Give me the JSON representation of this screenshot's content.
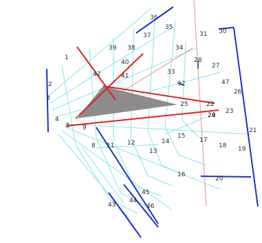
{
  "labels": {
    "l1": "1",
    "l2": "2",
    "l3": "3",
    "l4": "4",
    "l5": "5",
    "l6": "6",
    "l7": "7",
    "l8": "8",
    "l9": "9",
    "l11": "11",
    "l12": "12",
    "l13": "13",
    "l14": "14",
    "l15": "15",
    "l16": "16",
    "l17": "17",
    "l18": "18",
    "l19": "19",
    "l20": "20",
    "l21": "21",
    "l22": "22",
    "l23": "23",
    "l24": "24",
    "l25": "25",
    "l26": "26",
    "l27": "27",
    "l28": "28",
    "l29": "29",
    "l30": "30",
    "l31": "31",
    "l32": "32",
    "l33": "33",
    "l34": "34",
    "l35": "35",
    "l36": "36",
    "l37": "37",
    "l38": "38",
    "l39": "39",
    "l40": "40",
    "l41": "41",
    "l42": "42",
    "l43": "43",
    "l44": "44",
    "l45": "45",
    "l46": "46",
    "l47": "47"
  },
  "colors": {
    "grid": "#7fe6ee",
    "blue_line": "#1a2fd0",
    "red_line": "#e02020",
    "pink_line": "#e8a0a0",
    "wedge": "#8c8c8c",
    "label": "#2a2a2a"
  }
}
